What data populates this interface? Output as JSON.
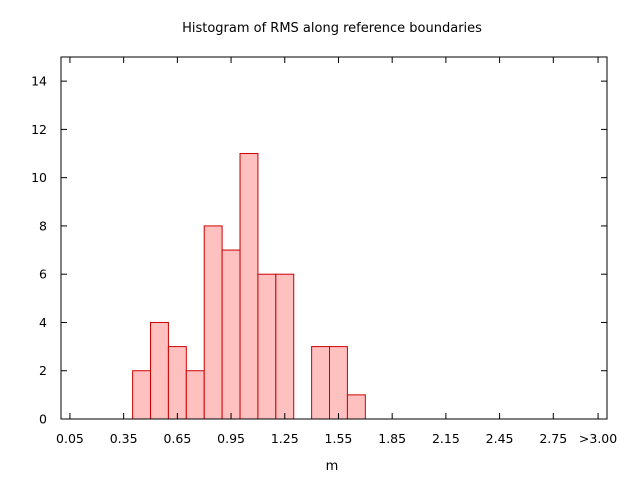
{
  "chart_data": {
    "type": "bar",
    "title": "Histogram of RMS along reference boundaries",
    "xlabel": "m",
    "ylabel": "",
    "xtick_labels": [
      "0.05",
      "0.35",
      "0.65",
      "0.95",
      "1.25",
      "1.55",
      "1.85",
      "2.15",
      "2.45",
      "2.75",
      ">3.00"
    ],
    "xtick_values": [
      0.05,
      0.35,
      0.65,
      0.95,
      1.25,
      1.55,
      1.85,
      2.15,
      2.45,
      2.75,
      3.0
    ],
    "ytick_labels": [
      "0",
      "2",
      "4",
      "6",
      "8",
      "10",
      "12",
      "14"
    ],
    "ytick_values": [
      0,
      2,
      4,
      6,
      8,
      10,
      12,
      14
    ],
    "xlim": [
      0.0,
      3.05
    ],
    "ylim": [
      0,
      15
    ],
    "bin_width": 0.1,
    "bins": [
      {
        "start": 0.4,
        "end": 0.5,
        "count": 2
      },
      {
        "start": 0.5,
        "end": 0.6,
        "count": 4
      },
      {
        "start": 0.6,
        "end": 0.7,
        "count": 3
      },
      {
        "start": 0.7,
        "end": 0.8,
        "count": 2
      },
      {
        "start": 0.8,
        "end": 0.9,
        "count": 8
      },
      {
        "start": 0.9,
        "end": 1.0,
        "count": 7
      },
      {
        "start": 1.0,
        "end": 1.1,
        "count": 11
      },
      {
        "start": 1.1,
        "end": 1.2,
        "count": 6
      },
      {
        "start": 1.2,
        "end": 1.3,
        "count": 6
      },
      {
        "start": 1.4,
        "end": 1.5,
        "count": 3
      },
      {
        "start": 1.5,
        "end": 1.6,
        "count": 3
      },
      {
        "start": 1.6,
        "end": 1.7,
        "count": 1
      }
    ],
    "bar_fill": "#ffc0c0",
    "bar_stroke": "#cc0000",
    "grid": false,
    "legend": "none"
  }
}
